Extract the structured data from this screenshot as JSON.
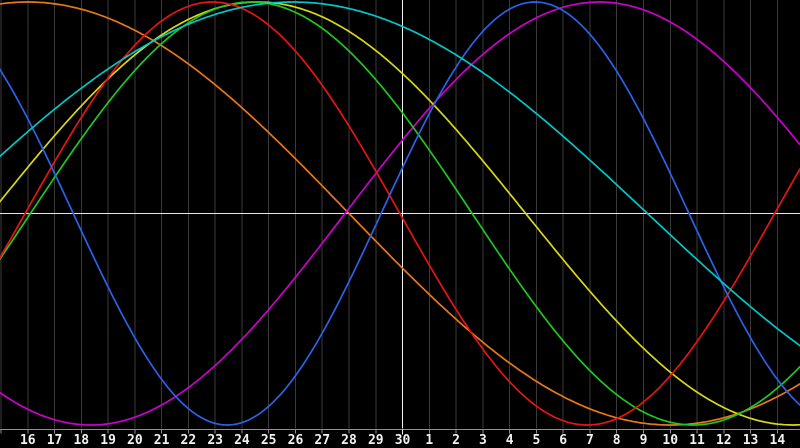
{
  "chart_data": {
    "type": "line",
    "title": "",
    "description": "Seven sine-wave cycles (biorhythm-style) plotted over 29 day columns on a black background",
    "x_axis": {
      "tick_labels": [
        "16",
        "17",
        "18",
        "19",
        "20",
        "21",
        "22",
        "23",
        "24",
        "25",
        "26",
        "27",
        "28",
        "29",
        "30",
        "1",
        "2",
        "3",
        "4",
        "5",
        "6",
        "7",
        "8",
        "9",
        "10",
        "11",
        "12",
        "13",
        "14"
      ],
      "first_day_index": 16,
      "days_shown": 29,
      "grid": true
    },
    "y_axis": {
      "min": -1,
      "max": 1,
      "zero_line": true,
      "tick_labels": []
    },
    "marker": {
      "vertical_line_at_label": "30",
      "horizontal_line_at_value": 0
    },
    "series": [
      {
        "name": "orange",
        "color": "#e87818",
        "period_days": 48,
        "zero_up_day": 4.0,
        "value_at_marker": -0.26
      },
      {
        "name": "magenta",
        "color": "#cc00cc",
        "period_days": 38,
        "zero_up_day": 27.85,
        "value_at_marker": 0.35
      },
      {
        "name": "yellow",
        "color": "#d8d818",
        "period_days": 40,
        "zero_up_day": 14.6,
        "value_at_marker": 0.66
      },
      {
        "name": "green",
        "color": "#1fc81f",
        "period_days": 33,
        "zero_up_day": 16.1,
        "value_at_marker": 0.48
      },
      {
        "name": "red",
        "color": "#e81414",
        "period_days": 28,
        "zero_up_day": 15.9,
        "value_at_marker": -0.02
      },
      {
        "name": "blue",
        "color": "#2b62e8",
        "period_days": 23,
        "zero_up_day": 29.2,
        "value_at_marker": 0.22
      },
      {
        "name": "cyan",
        "color": "#00c8c8",
        "period_days": 53,
        "zero_up_day": 12.65,
        "value_at_marker": 0.88
      }
    ],
    "colors": {
      "background": "#000000",
      "grid_line": "#3a3a3a",
      "zero_line": "#e6e6e6",
      "today_line": "#f2f2f2",
      "separator_line": "#8f8f8f",
      "tick_mark": "#8f8f8f",
      "label_text": "#f2f2f2"
    },
    "legend": "none"
  }
}
